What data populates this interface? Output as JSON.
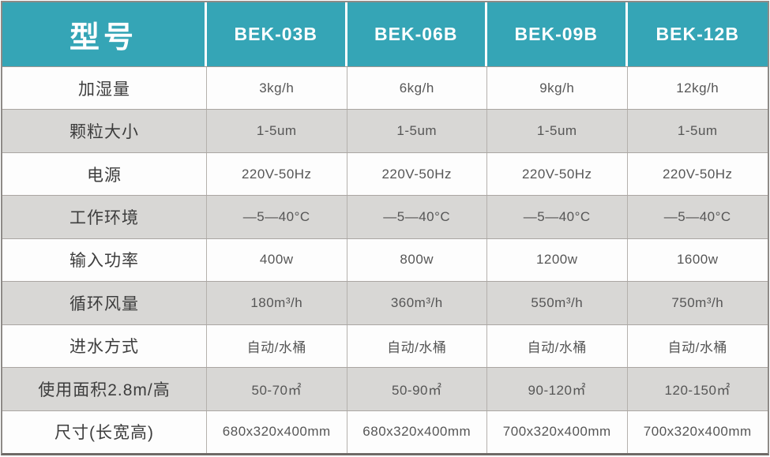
{
  "table": {
    "model_column_label": "型号",
    "models": [
      "BEK-03B",
      "BEK-06B",
      "BEK-09B",
      "BEK-12B"
    ],
    "rows": [
      {
        "label": "加湿量",
        "values": [
          "3kg/h",
          "6kg/h",
          "9kg/h",
          "12kg/h"
        ]
      },
      {
        "label": "颗粒大小",
        "values": [
          "1-5um",
          "1-5um",
          "1-5um",
          "1-5um"
        ]
      },
      {
        "label": "电源",
        "values": [
          "220V-50Hz",
          "220V-50Hz",
          "220V-50Hz",
          "220V-50Hz"
        ]
      },
      {
        "label": "工作环境",
        "values": [
          "—5—40°C",
          "—5—40°C",
          "—5—40°C",
          "—5—40°C"
        ]
      },
      {
        "label": "输入功率",
        "values": [
          "400w",
          "800w",
          "1200w",
          "1600w"
        ]
      },
      {
        "label": "循环风量",
        "values": [
          "180m³/h",
          "360m³/h",
          "550m³/h",
          "750m³/h"
        ]
      },
      {
        "label": "进水方式",
        "values": [
          "自动/水桶",
          "自动/水桶",
          "自动/水桶",
          "自动/水桶"
        ]
      },
      {
        "label": "使用面积2.8m/高",
        "values": [
          "50-70㎡",
          "50-90㎡",
          "90-120㎡",
          "120-150㎡"
        ]
      },
      {
        "label": "尺寸(长宽高)",
        "values": [
          "680x320x400mm",
          "680x320x400mm",
          "700x320x400mm",
          "700x320x400mm"
        ]
      }
    ],
    "colors": {
      "header_background": "#35a5b6",
      "header_text": "#ffffff",
      "shaded_row_background": "#d8d7d5",
      "row_background": "#fdfdfd"
    }
  }
}
